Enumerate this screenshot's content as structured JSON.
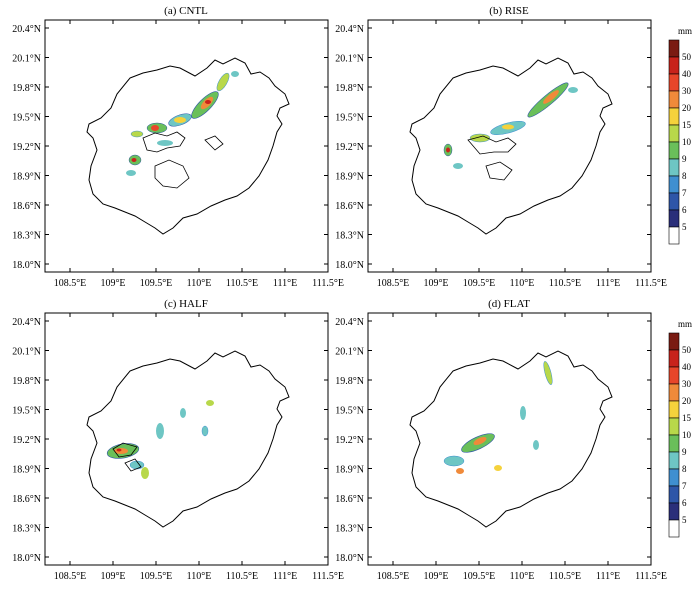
{
  "figure": {
    "panels": [
      {
        "id": "a",
        "title": "(a) CNTL",
        "has_colorbar": false
      },
      {
        "id": "b",
        "title": "(b) RISE",
        "has_colorbar": true
      },
      {
        "id": "c",
        "title": "(c) HALF",
        "has_colorbar": false
      },
      {
        "id": "d",
        "title": "(d) FLAT",
        "has_colorbar": true
      }
    ],
    "lat_ticks": [
      "20.4°N",
      "20.1°N",
      "19.8°N",
      "19.5°N",
      "19.2°N",
      "18.9°N",
      "18.6°N",
      "18.3°N",
      "18.0°N"
    ],
    "lon_ticks": [
      "108.5°E",
      "109°E",
      "109.5°E",
      "110°E",
      "110.5°E",
      "111°E",
      "111.5°E"
    ],
    "colorbar": {
      "unit": "mm",
      "labels": [
        "50",
        "40",
        "30",
        "20",
        "15",
        "10",
        "9",
        "8",
        "7",
        "6",
        "5"
      ],
      "colors": [
        "#7a1b12",
        "#c8231b",
        "#e8462a",
        "#f08a3a",
        "#f5d23c",
        "#b8d84a",
        "#6abf5a",
        "#6ec6c4",
        "#3f8fd0",
        "#2e56a8",
        "#2a2f7a",
        "#ffffff"
      ]
    }
  }
}
